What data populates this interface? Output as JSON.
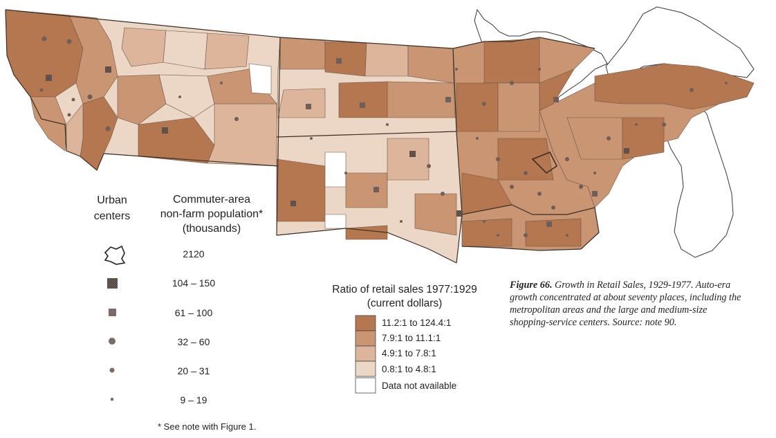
{
  "legend_symbols": {
    "title_urban": "Urban\ncenters",
    "title_population": "Commuter-area\nnon-farm population*\n(thousands)",
    "items": [
      {
        "label": "2120",
        "symbol": "metro-outline"
      },
      {
        "label": "104 – 150",
        "symbol": "large-square-crosshatch"
      },
      {
        "label": "61 – 100",
        "symbol": "small-square"
      },
      {
        "label": "32 – 60",
        "symbol": "large-dot"
      },
      {
        "label": "20 – 31",
        "symbol": "medium-dot"
      },
      {
        "label": "9 – 19",
        "symbol": "small-dot"
      }
    ],
    "footnote": "* See note with Figure 1."
  },
  "legend_classes": {
    "title": "Ratio of retail sales 1977:1929\n(current dollars)",
    "items": [
      {
        "label": "11.2:1 to 124.4:1",
        "color": "#b5774f"
      },
      {
        "label": "7.9:1 to 11.1:1",
        "color": "#c99573"
      },
      {
        "label": "4.9:1 to 7.8:1",
        "color": "#dcb59a"
      },
      {
        "label": "0.8:1 to 4.8:1",
        "color": "#ecd6c6"
      },
      {
        "label": "Data not available",
        "color": "#ffffff"
      }
    ]
  },
  "caption": {
    "figure": "Figure 66.",
    "title": " Growth in Retail Sales, 1929-1977.",
    "body": " Auto-era growth concentrated at about seventy places, including the metropolitan areas and the large and medium-size shopping-service centers. Source: note 90."
  },
  "colors": {
    "class1": "#b5774f",
    "class2": "#c99573",
    "class3": "#dcb59a",
    "class4": "#ecd6c6",
    "na": "#ffffff",
    "border": "#4a3a30",
    "symbol": "#6e5f59"
  }
}
